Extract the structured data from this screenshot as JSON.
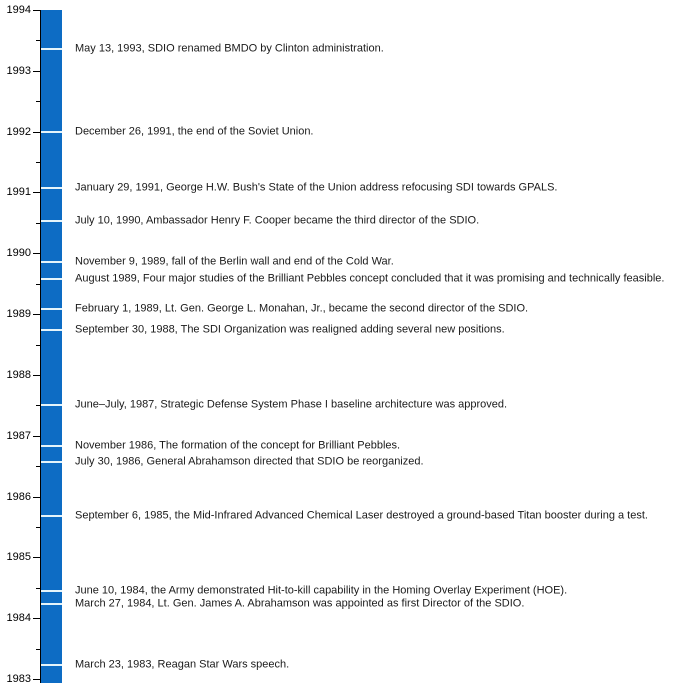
{
  "page": {
    "background_color": "#ffffff",
    "text_color": "#1a1a1a"
  },
  "chart_data": {
    "type": "bar",
    "subtype": "vertical-timeline",
    "title": "",
    "xlabel": "",
    "ylabel": "",
    "axis": {
      "min_year": 1983,
      "max_year": 1994,
      "major_tick_years": [
        1994,
        1993,
        1992,
        1991,
        1990,
        1989,
        1988,
        1987,
        1986,
        1985,
        1984,
        1983
      ],
      "minor_tick_interval_years": 0.5,
      "grid": false,
      "legend": "none"
    },
    "bar_color": "#0d6cc4",
    "event_marker_color": "#e4f4fb",
    "axis_color": "#000000",
    "events": [
      {
        "date": "May 13, 1993",
        "year_value": 1993.364,
        "label": "May 13, 1993, SDIO renamed BMDO by Clinton administration."
      },
      {
        "date": "December 26, 1991",
        "year_value": 1991.986,
        "label": "December 26, 1991, the end of the Soviet Union."
      },
      {
        "date": "January 29, 1991",
        "year_value": 1991.077,
        "label": "January 29, 1991, George H.W. Bush's State of the Union address refocusing SDI towards GPALS."
      },
      {
        "date": "July 10, 1990",
        "year_value": 1990.523,
        "label": "July 10, 1990, Ambassador Henry F. Cooper became the third director of the SDIO."
      },
      {
        "date": "November 9, 1989",
        "year_value": 1989.855,
        "label": "November 9, 1989, fall of the Berlin wall and end of the Cold War."
      },
      {
        "date": "August 1989",
        "year_value": 1989.583,
        "label": "August 1989, Four major studies of the Brilliant Pebbles concept concluded that it was promising and technically feasible."
      },
      {
        "date": "February 1, 1989",
        "year_value": 1989.085,
        "label": "February 1, 1989, Lt. Gen. George L. Monahan, Jr., became the second director of the SDIO."
      },
      {
        "date": "September 30, 1988",
        "year_value": 1988.745,
        "label": "September 30, 1988, The SDI Organization was realigned adding several new positions."
      },
      {
        "date": "June–July, 1987",
        "year_value": 1987.5,
        "label": "June–July, 1987, Strategic Defense System Phase I baseline architecture was approved."
      },
      {
        "date": "November 1986",
        "year_value": 1986.833,
        "label": "November 1986, The formation of the concept for Brilliant Pebbles."
      },
      {
        "date": "July 30, 1986",
        "year_value": 1986.575,
        "label": "July 30, 1986, General Abrahamson directed that SDIO be reorganized."
      },
      {
        "date": "September 6, 1985",
        "year_value": 1985.682,
        "label": "September 6, 1985, the Mid-Infrared Advanced Chemical Laser destroyed a ground-based Titan booster during a test."
      },
      {
        "date": "June 10, 1984",
        "year_value": 1984.441,
        "label": "June 10, 1984, the Army demonstrated Hit-to-kill capability in the Homing Overlay Experiment (HOE)."
      },
      {
        "date": "March 27, 1984",
        "year_value": 1984.233,
        "label": "March 27, 1984, Lt. Gen. James A. Abrahamson was appointed as first Director of the SDIO."
      },
      {
        "date": "March 23, 1983",
        "year_value": 1983.223,
        "label": "March 23, 1983, Reagan Star Wars speech."
      }
    ]
  }
}
